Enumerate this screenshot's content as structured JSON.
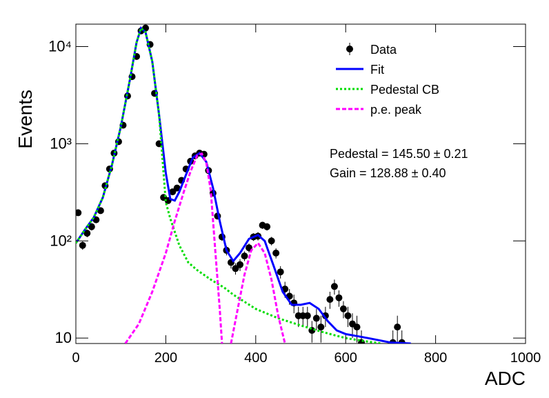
{
  "chart_data": {
    "type": "line",
    "xlabel": "ADC",
    "ylabel": "Events",
    "log_y": true,
    "xlim": [
      0,
      1000
    ],
    "ylim": [
      8.8,
      17000
    ],
    "xticks": [
      0,
      200,
      400,
      600,
      800,
      1000
    ],
    "yticks": [
      10,
      {
        "value": 100,
        "label": "10²"
      },
      {
        "value": 1000,
        "label": "10³"
      },
      {
        "value": 10000,
        "label": "10⁴"
      }
    ],
    "annotations": [
      "Pedestal = 145.50 ± 0.21",
      "Gain = 128.88 ± 0.40"
    ],
    "series": [
      {
        "name": "Data",
        "style": "points",
        "color": "#000000",
        "x": [
          5,
          15,
          25,
          35,
          45,
          55,
          65,
          75,
          85,
          95,
          105,
          115,
          125,
          135,
          145,
          155,
          165,
          175,
          185,
          195,
          205,
          215,
          225,
          235,
          245,
          255,
          265,
          275,
          285,
          295,
          305,
          315,
          325,
          335,
          345,
          355,
          365,
          375,
          385,
          395,
          405,
          415,
          425,
          435,
          445,
          455,
          465,
          475,
          485,
          495,
          505,
          515,
          525,
          535,
          545,
          555,
          565,
          575,
          585,
          595,
          605,
          615,
          625,
          635,
          705,
          715,
          725
        ],
        "values": [
          195,
          90,
          120,
          140,
          165,
          205,
          370,
          550,
          800,
          1050,
          1550,
          3100,
          4900,
          7900,
          14500,
          15500,
          10500,
          3300,
          1000,
          280,
          260,
          320,
          350,
          420,
          550,
          660,
          750,
          800,
          780,
          530,
          310,
          180,
          110,
          80,
          60,
          52,
          57,
          70,
          85,
          110,
          112,
          145,
          140,
          100,
          75,
          48,
          32,
          27,
          23,
          17,
          17,
          17,
          12,
          16,
          13,
          17,
          25,
          34,
          26,
          20,
          17,
          14,
          13,
          9,
          9,
          13,
          9
        ],
        "errors": [
          14,
          9,
          11,
          12,
          13,
          14,
          19,
          23,
          28,
          32,
          39,
          56,
          70,
          89,
          120,
          124,
          102,
          57,
          32,
          17,
          16,
          18,
          19,
          20,
          23,
          26,
          27,
          28,
          28,
          23,
          18,
          13,
          10,
          9,
          8,
          7,
          8,
          8,
          9,
          10,
          11,
          12,
          12,
          10,
          9,
          7,
          6,
          5,
          5,
          4,
          4,
          4,
          3,
          4,
          4,
          4,
          5,
          6,
          5,
          4,
          4,
          4,
          4,
          3,
          3,
          4,
          3
        ]
      },
      {
        "name": "Fit",
        "style": "solid",
        "color": "#0000ff",
        "x": [
          0,
          20,
          40,
          60,
          80,
          100,
          120,
          135,
          145,
          155,
          170,
          185,
          200,
          210,
          220,
          230,
          245,
          260,
          275,
          290,
          305,
          320,
          335,
          350,
          365,
          385,
          405,
          420,
          440,
          460,
          480,
          500,
          520,
          540,
          560,
          580,
          600,
          650,
          700,
          745
        ],
        "values": [
          95,
          130,
          175,
          280,
          600,
          1500,
          4500,
          11000,
          15500,
          14000,
          7000,
          2000,
          500,
          270,
          260,
          320,
          480,
          720,
          800,
          650,
          350,
          160,
          80,
          62,
          75,
          105,
          115,
          100,
          55,
          30,
          22,
          22,
          23,
          20,
          15,
          12,
          11,
          10,
          9,
          8.8
        ]
      },
      {
        "name": "Pedestal CB",
        "style": "dotted",
        "color": "#00dd00",
        "x": [
          0,
          20,
          40,
          60,
          80,
          100,
          120,
          135,
          145,
          155,
          170,
          185,
          200,
          210,
          230,
          250,
          270,
          300,
          330,
          350,
          400,
          450,
          500,
          550,
          600,
          650,
          680
        ],
        "values": [
          95,
          130,
          175,
          280,
          600,
          1500,
          4500,
          11000,
          15500,
          14000,
          7000,
          2000,
          250,
          170,
          90,
          60,
          50,
          40,
          33,
          28,
          20,
          16,
          13.5,
          11.5,
          10,
          9.2,
          8.8
        ]
      },
      {
        "name": "p.e. peak",
        "style": "dashed",
        "color": "#ff00ff",
        "x": [
          110,
          140,
          170,
          200,
          220,
          240,
          255,
          270,
          280,
          290,
          300,
          310,
          320,
          325,
          335,
          345,
          360,
          375,
          390,
          405,
          420,
          435,
          450,
          465
        ],
        "values": [
          8.8,
          14,
          30,
          75,
          160,
          320,
          520,
          760,
          790,
          640,
          330,
          80,
          20,
          8.8,
          null,
          8.8,
          20,
          45,
          80,
          95,
          75,
          40,
          17,
          8.8
        ]
      }
    ]
  }
}
